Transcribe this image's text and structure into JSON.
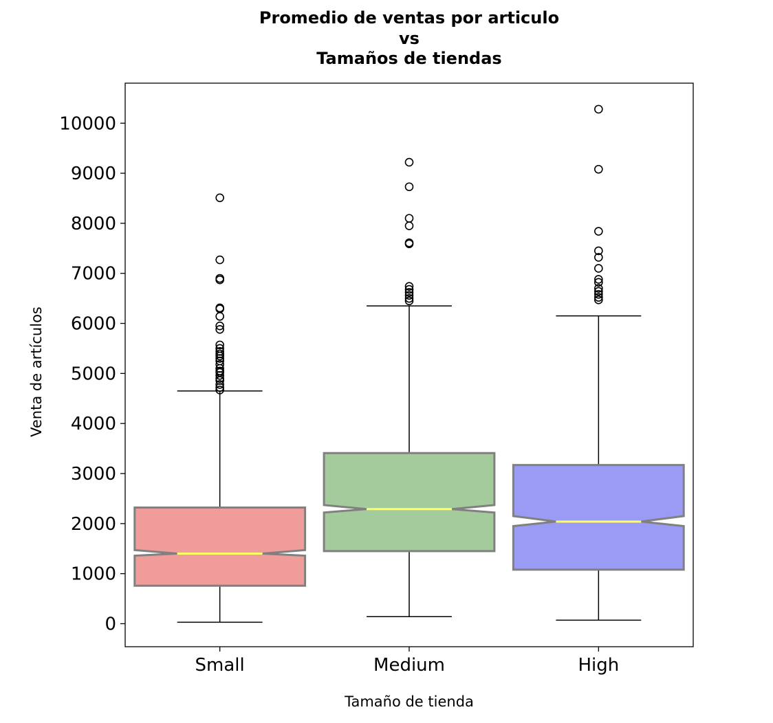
{
  "chart_data": {
    "type": "boxplot",
    "title_lines": [
      "Promedio de ventas por articulo",
      "vs",
      "Tamaños de tiendas"
    ],
    "xlabel": "Tamaño de tienda",
    "ylabel": "Venta de artículos",
    "categories": [
      "Small",
      "Medium",
      "High"
    ],
    "ylim": [
      -460,
      10800
    ],
    "yticks": [
      0,
      1000,
      2000,
      3000,
      4000,
      5000,
      6000,
      7000,
      8000,
      9000,
      10000
    ],
    "notched": true,
    "median_color": "#ffff66",
    "box_edge_color": "#808080",
    "boxes": [
      {
        "name": "Small",
        "color": "#f09c9a",
        "whisker_low": 30,
        "q1": 760,
        "median": 1400,
        "q3": 2320,
        "whisker_high": 4650,
        "notch_low": 1360,
        "notch_high": 1470,
        "outliers": [
          8510,
          7270,
          6900,
          6870,
          6310,
          6290,
          6140,
          5950,
          5880,
          5570,
          5500,
          5440,
          5390,
          5350,
          5300,
          5250,
          5180,
          5100,
          5050,
          5020,
          4960,
          4900,
          4860,
          4780,
          4720,
          4670
        ]
      },
      {
        "name": "Medium",
        "color": "#a3cb9c",
        "whisker_low": 140,
        "q1": 1450,
        "median": 2290,
        "q3": 3410,
        "whisker_high": 6350,
        "notch_low": 2220,
        "notch_high": 2370,
        "outliers": [
          9220,
          8730,
          8100,
          7950,
          7610,
          7590,
          6740,
          6680,
          6620,
          6560,
          6500,
          6450
        ]
      },
      {
        "name": "High",
        "color": "#9a9bf5",
        "whisker_low": 70,
        "q1": 1080,
        "median": 2040,
        "q3": 3170,
        "whisker_high": 6150,
        "notch_low": 1950,
        "notch_high": 2150,
        "outliers": [
          10280,
          9080,
          7840,
          7450,
          7320,
          7100,
          6880,
          6820,
          6700,
          6640,
          6580,
          6520,
          6470
        ]
      }
    ]
  }
}
